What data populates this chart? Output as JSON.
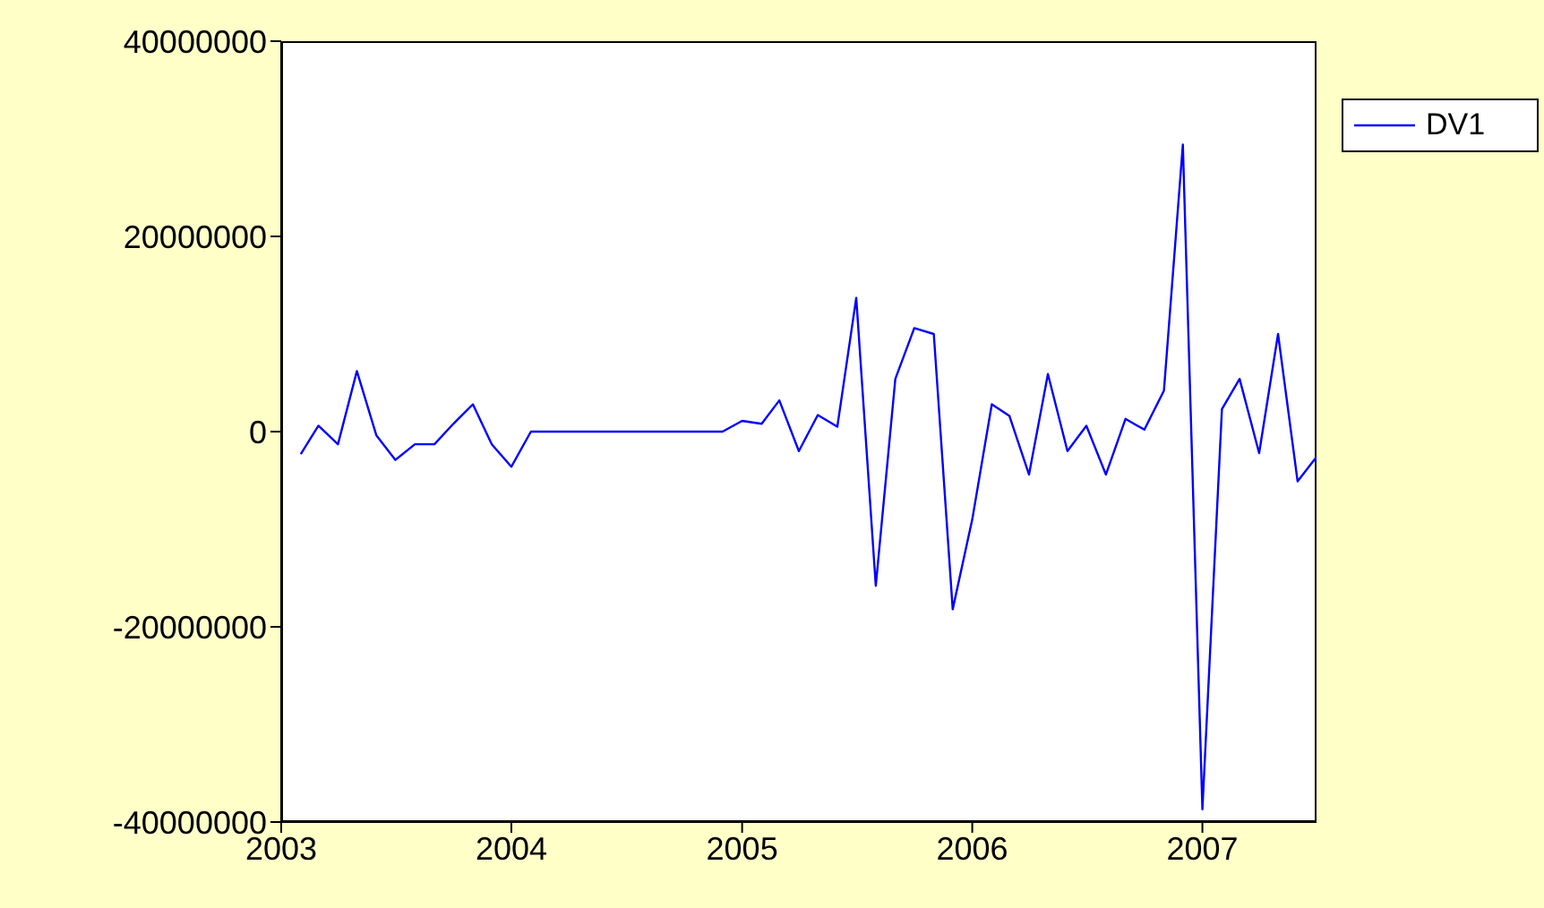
{
  "chart_data": {
    "type": "line",
    "x": [
      "2003-02",
      "2003-03",
      "2003-04",
      "2003-05",
      "2003-06",
      "2003-07",
      "2003-08",
      "2003-09",
      "2003-10",
      "2003-11",
      "2003-12",
      "2004-01",
      "2004-02",
      "2004-03",
      "2004-04",
      "2004-05",
      "2004-06",
      "2004-07",
      "2004-08",
      "2004-09",
      "2004-10",
      "2004-11",
      "2004-12",
      "2005-01",
      "2005-02",
      "2005-03",
      "2005-04",
      "2005-05",
      "2005-06",
      "2005-07",
      "2005-08",
      "2005-09",
      "2005-10",
      "2005-11",
      "2005-12",
      "2006-01",
      "2006-02",
      "2006-03",
      "2006-04",
      "2006-05",
      "2006-06",
      "2006-07",
      "2006-08",
      "2006-09",
      "2006-10",
      "2006-11",
      "2006-12",
      "2007-01",
      "2007-02",
      "2007-03",
      "2007-04",
      "2007-05",
      "2007-06",
      "2007-07"
    ],
    "series": [
      {
        "name": "DV1",
        "color": "#0000ff",
        "values": [
          -2300000,
          600000,
          -1300000,
          6200000,
          -400000,
          -2900000,
          -1300000,
          -1300000,
          800000,
          2800000,
          -1300000,
          -3600000,
          0,
          0,
          0,
          0,
          0,
          0,
          0,
          0,
          0,
          0,
          0,
          1100000,
          800000,
          3200000,
          -2000000,
          1700000,
          500000,
          13700000,
          -15800000,
          5400000,
          10600000,
          10000000,
          -18200000,
          -9000000,
          2800000,
          1600000,
          -4400000,
          5900000,
          -2000000,
          600000,
          -4400000,
          1300000,
          200000,
          4200000,
          29400000,
          -38700000,
          2300000,
          5400000,
          -2200000,
          10000000,
          -5100000,
          -2600000
        ]
      }
    ],
    "xlim": [
      "2003-01",
      "2007-07"
    ],
    "xticks": [
      "2003",
      "2004",
      "2005",
      "2006",
      "2007"
    ],
    "ylim": [
      -40000000,
      40000000
    ],
    "yticks": [
      -40000000,
      -20000000,
      0,
      20000000,
      40000000
    ],
    "legend": "top right",
    "marker": "none",
    "line_style": "solid"
  }
}
